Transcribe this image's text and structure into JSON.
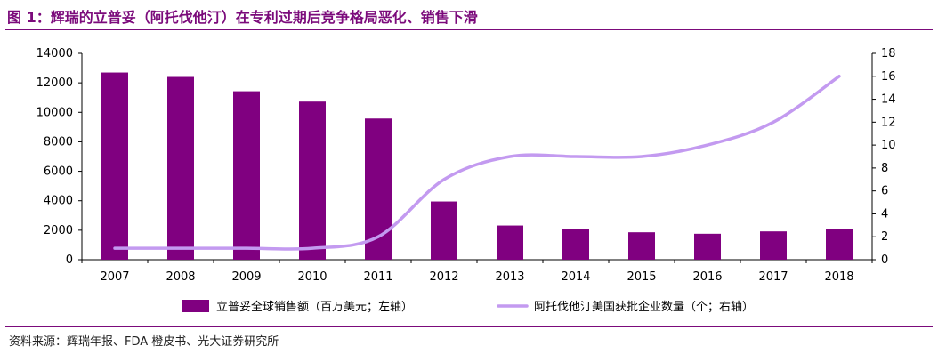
{
  "figure": {
    "title": "图 1：辉瑞的立普妥（阿托伐他汀）在专利过期后竞争格局恶化、销售下滑",
    "source": "资料来源：辉瑞年报、FDA 橙皮书、光大证券研究所"
  },
  "chart_data": {
    "type": "bar+line",
    "categories": [
      "2007",
      "2008",
      "2009",
      "2010",
      "2011",
      "2012",
      "2013",
      "2014",
      "2015",
      "2016",
      "2017",
      "2018"
    ],
    "series": [
      {
        "name": "立普妥全球销售额（百万美元；左轴）",
        "type": "bar",
        "axis": "left",
        "color": "#800080",
        "values": [
          12700,
          12400,
          11430,
          10730,
          9580,
          3950,
          2320,
          2060,
          1860,
          1760,
          1920,
          2060
        ]
      },
      {
        "name": "阿托伐他汀美国获批企业数量（个；右轴）",
        "type": "line",
        "axis": "right",
        "color": "#c39af0",
        "values": [
          1,
          1,
          1,
          1,
          2,
          7,
          9,
          9,
          9,
          10,
          12,
          16
        ]
      }
    ],
    "y_left": {
      "min": 0,
      "max": 14000,
      "ticks": [
        "0",
        "2000",
        "4000",
        "6000",
        "8000",
        "10000",
        "12000",
        "14000"
      ]
    },
    "y_right": {
      "min": 0,
      "max": 18,
      "ticks": [
        "0",
        "2",
        "4",
        "6",
        "8",
        "10",
        "12",
        "14",
        "16",
        "18"
      ]
    },
    "grid": false,
    "legend": "bottom"
  }
}
